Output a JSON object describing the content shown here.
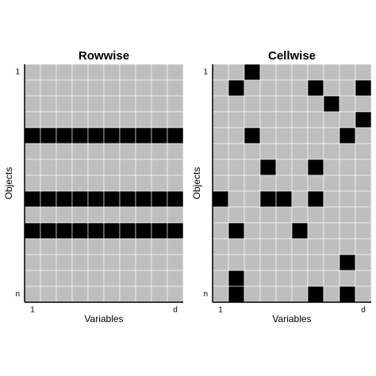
{
  "chart_data": [
    {
      "type": "heatmap",
      "title": "Rowwise",
      "xlabel": "Variables",
      "ylabel": "Objects",
      "xticks": [
        {
          "value": 1,
          "label": "1"
        },
        {
          "value": 10,
          "label": "d"
        }
      ],
      "yticks": [
        {
          "value": 1,
          "label": "1"
        },
        {
          "value": 15,
          "label": "n"
        }
      ],
      "colors": [
        "#bebebe",
        "#000000"
      ],
      "values": [
        [
          0,
          0,
          0,
          0,
          0,
          0,
          0,
          0,
          0,
          0
        ],
        [
          0,
          0,
          0,
          0,
          0,
          0,
          0,
          0,
          0,
          0
        ],
        [
          0,
          0,
          0,
          0,
          0,
          0,
          0,
          0,
          0,
          0
        ],
        [
          0,
          0,
          0,
          0,
          0,
          0,
          0,
          0,
          0,
          0
        ],
        [
          1,
          1,
          1,
          1,
          1,
          1,
          1,
          1,
          1,
          1
        ],
        [
          0,
          0,
          0,
          0,
          0,
          0,
          0,
          0,
          0,
          0
        ],
        [
          0,
          0,
          0,
          0,
          0,
          0,
          0,
          0,
          0,
          0
        ],
        [
          0,
          0,
          0,
          0,
          0,
          0,
          0,
          0,
          0,
          0
        ],
        [
          1,
          1,
          1,
          1,
          1,
          1,
          1,
          1,
          1,
          1
        ],
        [
          0,
          0,
          0,
          0,
          0,
          0,
          0,
          0,
          0,
          0
        ],
        [
          1,
          1,
          1,
          1,
          1,
          1,
          1,
          1,
          1,
          1
        ],
        [
          0,
          0,
          0,
          0,
          0,
          0,
          0,
          0,
          0,
          0
        ],
        [
          0,
          0,
          0,
          0,
          0,
          0,
          0,
          0,
          0,
          0
        ],
        [
          0,
          0,
          0,
          0,
          0,
          0,
          0,
          0,
          0,
          0
        ],
        [
          0,
          0,
          0,
          0,
          0,
          0,
          0,
          0,
          0,
          0
        ]
      ]
    },
    {
      "type": "heatmap",
      "title": "Cellwise",
      "xlabel": "Variables",
      "ylabel": "Objects",
      "xticks": [
        {
          "value": 1,
          "label": "1"
        },
        {
          "value": 10,
          "label": "d"
        }
      ],
      "yticks": [
        {
          "value": 1,
          "label": "1"
        },
        {
          "value": 15,
          "label": "n"
        }
      ],
      "colors": [
        "#bebebe",
        "#000000"
      ],
      "values": [
        [
          0,
          0,
          1,
          0,
          0,
          0,
          0,
          0,
          0,
          0
        ],
        [
          0,
          1,
          0,
          0,
          0,
          0,
          1,
          0,
          0,
          1
        ],
        [
          0,
          0,
          0,
          0,
          0,
          0,
          0,
          1,
          0,
          0
        ],
        [
          0,
          0,
          0,
          0,
          0,
          0,
          0,
          0,
          0,
          1
        ],
        [
          0,
          0,
          1,
          0,
          0,
          0,
          0,
          0,
          1,
          0
        ],
        [
          0,
          0,
          0,
          0,
          0,
          0,
          0,
          0,
          0,
          0
        ],
        [
          0,
          0,
          0,
          1,
          0,
          0,
          1,
          0,
          0,
          0
        ],
        [
          0,
          0,
          0,
          0,
          0,
          0,
          0,
          0,
          0,
          0
        ],
        [
          1,
          0,
          0,
          1,
          1,
          0,
          1,
          0,
          0,
          0
        ],
        [
          0,
          0,
          0,
          0,
          0,
          0,
          0,
          0,
          0,
          0
        ],
        [
          0,
          1,
          0,
          0,
          0,
          1,
          0,
          0,
          0,
          0
        ],
        [
          0,
          0,
          0,
          0,
          0,
          0,
          0,
          0,
          0,
          0
        ],
        [
          0,
          0,
          0,
          0,
          0,
          0,
          0,
          0,
          1,
          0
        ],
        [
          0,
          1,
          0,
          0,
          0,
          0,
          0,
          0,
          0,
          0
        ],
        [
          0,
          1,
          0,
          0,
          0,
          0,
          1,
          0,
          1,
          0
        ]
      ]
    }
  ]
}
